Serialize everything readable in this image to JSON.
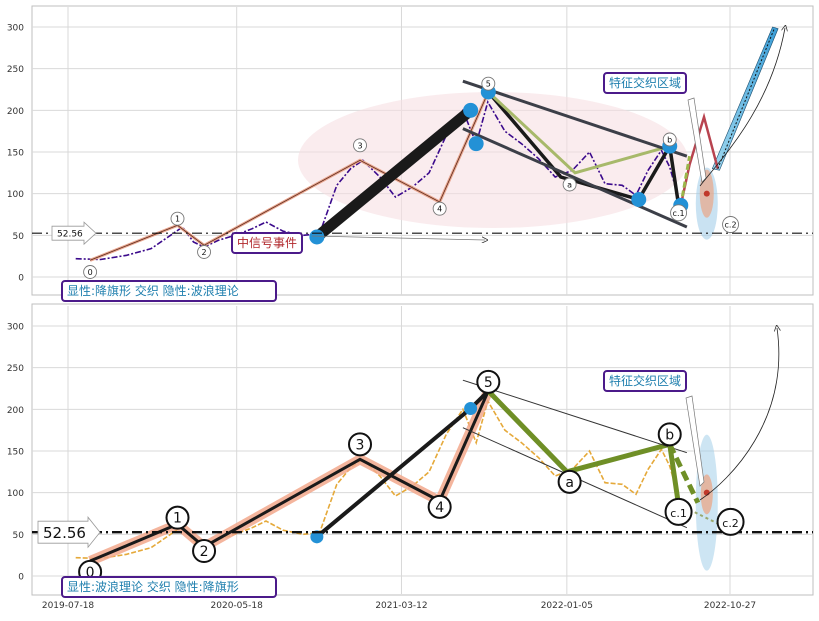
{
  "chart_data": [
    {
      "type": "line",
      "panel": "top",
      "title": "",
      "xlabel": "",
      "ylabel": "",
      "ylim": [
        -20,
        325
      ],
      "yticks": [
        0,
        50,
        100,
        150,
        200,
        250,
        300
      ],
      "grid": true,
      "reference_line": {
        "value": 52.56,
        "label": "52.56"
      },
      "labels": {
        "bottom_box": "显性:降旗形 交织 隐性:波浪理论",
        "event_box": "中信号事件",
        "zone_box": "特征交织区域"
      },
      "wave_labels": [
        {
          "text": "0",
          "x": "2019-08-27",
          "y": 6
        },
        {
          "text": "1",
          "x": "2020-02-01",
          "y": 70
        },
        {
          "text": "2",
          "x": "2020-03-20",
          "y": 30
        },
        {
          "text": "3",
          "x": "2020-12-27",
          "y": 158
        },
        {
          "text": "4",
          "x": "2021-05-20",
          "y": 82
        },
        {
          "text": "5",
          "x": "2021-08-16",
          "y": 232
        },
        {
          "text": "a",
          "x": "2022-01-10",
          "y": 111
        },
        {
          "text": "b",
          "x": "2022-07-10",
          "y": 165
        },
        {
          "text": "c.1",
          "x": "2022-07-26",
          "y": 77
        },
        {
          "text": "c.2",
          "x": "2022-10-28",
          "y": 63
        }
      ],
      "series": [
        {
          "role": "price",
          "values": [
            [
              "2019-08-01",
              22
            ],
            [
              "2019-09-15",
              21
            ],
            [
              "2019-11-01",
              26
            ],
            [
              "2019-12-15",
              34
            ],
            [
              "2020-01-15",
              48
            ],
            [
              "2020-02-10",
              60
            ],
            [
              "2020-03-01",
              42
            ],
            [
              "2020-03-20",
              36
            ],
            [
              "2020-04-15",
              44
            ],
            [
              "2020-05-15",
              50
            ],
            [
              "2020-06-15",
              58
            ],
            [
              "2020-07-10",
              66
            ],
            [
              "2020-08-10",
              55
            ],
            [
              "2020-09-15",
              50
            ],
            [
              "2020-10-15",
              52
            ],
            [
              "2020-11-15",
              110
            ],
            [
              "2020-12-10",
              130
            ],
            [
              "2021-01-01",
              140
            ],
            [
              "2021-02-01",
              120
            ],
            [
              "2021-03-01",
              96
            ],
            [
              "2021-04-01",
              108
            ],
            [
              "2021-05-01",
              125
            ],
            [
              "2021-06-01",
              170
            ],
            [
              "2021-07-01",
              200
            ],
            [
              "2021-07-25",
              160
            ],
            [
              "2021-08-15",
              210
            ],
            [
              "2021-09-15",
              175
            ],
            [
              "2021-10-15",
              160
            ],
            [
              "2021-11-15",
              142
            ],
            [
              "2021-12-15",
              120
            ],
            [
              "2022-01-15",
              128
            ],
            [
              "2022-02-15",
              150
            ],
            [
              "2022-03-15",
              112
            ],
            [
              "2022-04-15",
              110
            ],
            [
              "2022-05-10",
              98
            ],
            [
              "2022-06-01",
              128
            ],
            [
              "2022-06-25",
              152
            ],
            [
              "2022-07-10",
              132
            ],
            [
              "2022-07-28",
              90
            ]
          ]
        },
        {
          "role": "wave",
          "values": [
            [
              "2019-08-27",
              20
            ],
            [
              "2020-02-01",
              62
            ],
            [
              "2020-03-20",
              38
            ],
            [
              "2020-12-27",
              140
            ],
            [
              "2021-05-20",
              90
            ],
            [
              "2021-08-16",
              222
            ]
          ]
        },
        {
          "role": "wave-projection",
          "values": [
            [
              "2020-10-10",
              48
            ],
            [
              "2021-07-15",
              200
            ],
            [
              "2021-08-16",
              222
            ],
            [
              "2021-12-25",
              120
            ],
            [
              "2022-05-15",
              93
            ],
            [
              "2022-07-10",
              157
            ],
            [
              "2022-07-26",
              86
            ]
          ]
        },
        {
          "role": "forecast",
          "values": [
            [
              "2022-08-15",
              135
            ],
            [
              "2022-09-10",
              185
            ],
            [
              "2022-10-05",
              130
            ],
            [
              "2023-01-15",
              298
            ]
          ]
        }
      ],
      "markers": [
        {
          "x": "2020-10-10",
          "y": 48
        },
        {
          "x": "2021-07-15",
          "y": 200
        },
        {
          "x": "2021-07-25",
          "y": 160
        },
        {
          "x": "2021-08-16",
          "y": 222
        },
        {
          "x": "2022-05-15",
          "y": 93
        },
        {
          "x": "2022-07-10",
          "y": 157
        },
        {
          "x": "2022-07-30",
          "y": 86
        }
      ]
    },
    {
      "type": "line",
      "panel": "bottom",
      "title": "",
      "xlabel": "",
      "ylabel": "",
      "ylim": [
        -20,
        322
      ],
      "yticks": [
        0,
        50,
        100,
        150,
        200,
        250,
        300
      ],
      "xticks": [
        "2019-07-18",
        "2020-05-18",
        "2021-03-12",
        "2022-01-05",
        "2022-10-27"
      ],
      "grid": true,
      "reference_line": {
        "value": 52.56,
        "label": "52.56"
      },
      "labels": {
        "bottom_box": "显性:波浪理论 交织 隐性:降旗形",
        "zone_box": "特征交织区域"
      },
      "wave_labels": [
        {
          "text": "0",
          "x": "2019-08-27",
          "y": 5
        },
        {
          "text": "1",
          "x": "2020-02-01",
          "y": 70
        },
        {
          "text": "2",
          "x": "2020-03-20",
          "y": 30
        },
        {
          "text": "3",
          "x": "2020-12-27",
          "y": 158
        },
        {
          "text": "4",
          "x": "2021-05-20",
          "y": 83
        },
        {
          "text": "5",
          "x": "2021-08-16",
          "y": 233
        },
        {
          "text": "a",
          "x": "2022-01-10",
          "y": 113
        },
        {
          "text": "b",
          "x": "2022-07-10",
          "y": 170
        },
        {
          "text": "c.1",
          "x": "2022-07-26",
          "y": 77
        },
        {
          "text": "c.2",
          "x": "2022-10-28",
          "y": 65
        }
      ],
      "series": [
        {
          "role": "price",
          "values": [
            [
              "2019-08-01",
              22
            ],
            [
              "2019-09-15",
              21
            ],
            [
              "2019-11-01",
              26
            ],
            [
              "2019-12-15",
              34
            ],
            [
              "2020-01-15",
              48
            ],
            [
              "2020-02-10",
              60
            ],
            [
              "2020-03-01",
              42
            ],
            [
              "2020-03-20",
              36
            ],
            [
              "2020-04-15",
              44
            ],
            [
              "2020-05-15",
              50
            ],
            [
              "2020-06-15",
              58
            ],
            [
              "2020-07-10",
              66
            ],
            [
              "2020-08-10",
              55
            ],
            [
              "2020-09-15",
              50
            ],
            [
              "2020-10-15",
              52
            ],
            [
              "2020-11-15",
              110
            ],
            [
              "2020-12-10",
              130
            ],
            [
              "2021-01-01",
              140
            ],
            [
              "2021-02-01",
              120
            ],
            [
              "2021-03-01",
              96
            ],
            [
              "2021-04-01",
              108
            ],
            [
              "2021-05-01",
              125
            ],
            [
              "2021-06-01",
              170
            ],
            [
              "2021-07-01",
              200
            ],
            [
              "2021-07-25",
              160
            ],
            [
              "2021-08-15",
              210
            ],
            [
              "2021-09-15",
              175
            ],
            [
              "2021-10-15",
              160
            ],
            [
              "2021-11-15",
              142
            ],
            [
              "2021-12-15",
              120
            ],
            [
              "2022-01-15",
              128
            ],
            [
              "2022-02-15",
              150
            ],
            [
              "2022-03-15",
              112
            ],
            [
              "2022-04-15",
              110
            ],
            [
              "2022-05-10",
              98
            ],
            [
              "2022-06-01",
              128
            ],
            [
              "2022-06-25",
              152
            ],
            [
              "2022-07-10",
              132
            ],
            [
              "2022-07-28",
              90
            ]
          ]
        },
        {
          "role": "wave",
          "values": [
            [
              "2019-08-27",
              18
            ],
            [
              "2020-02-01",
              62
            ],
            [
              "2020-03-20",
              35
            ],
            [
              "2020-12-27",
              140
            ],
            [
              "2021-05-20",
              90
            ],
            [
              "2021-08-16",
              222
            ]
          ]
        },
        {
          "role": "wave-projection",
          "values": [
            [
              "2020-10-10",
              47
            ],
            [
              "2021-07-15",
              201
            ],
            [
              "2021-08-16",
              222
            ]
          ]
        },
        {
          "role": "correction",
          "values": [
            [
              "2021-08-16",
              222
            ],
            [
              "2022-01-05",
              125
            ],
            [
              "2022-07-10",
              158
            ],
            [
              "2022-07-26",
              85
            ]
          ]
        }
      ],
      "markers": [
        {
          "x": "2020-10-10",
          "y": 47
        },
        {
          "x": "2021-07-15",
          "y": 201
        }
      ]
    }
  ]
}
